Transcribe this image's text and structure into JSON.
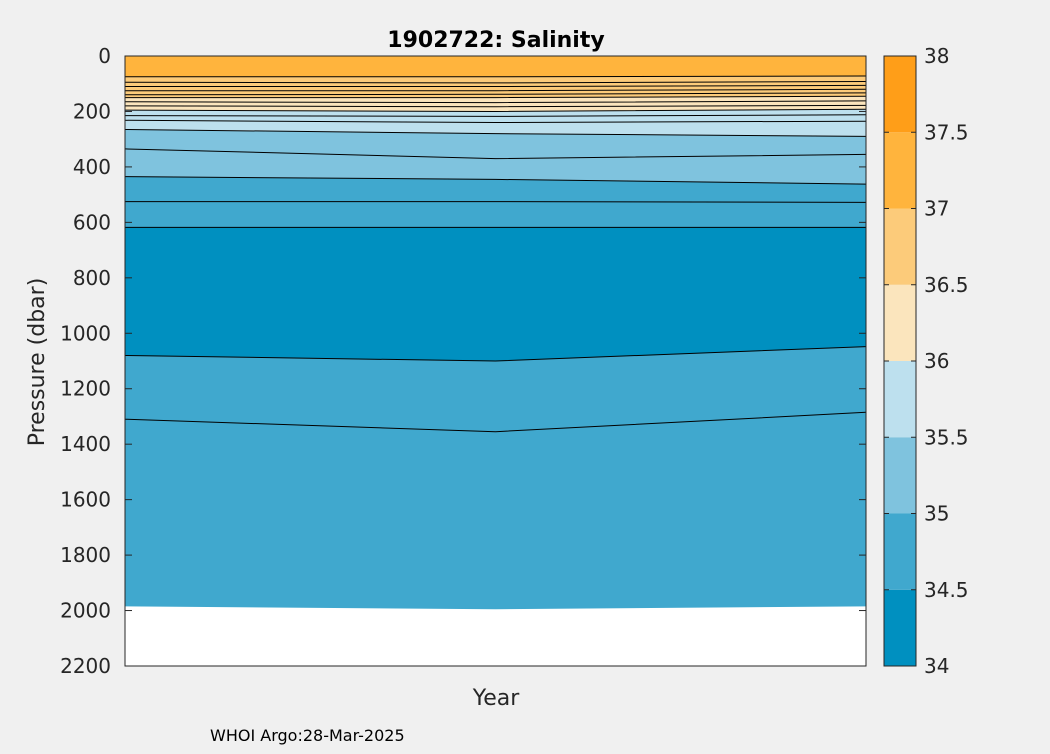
{
  "chart_data": {
    "type": "filled-contour",
    "title": "1902722:  Salinity",
    "xlabel": "Year",
    "ylabel": "Pressure (dbar)",
    "y_axis": {
      "range": [
        0,
        2200
      ],
      "reversed": true,
      "ticks": [
        0,
        200,
        400,
        600,
        800,
        1000,
        1200,
        1400,
        1600,
        1800,
        2000,
        2200
      ],
      "tick_labels": [
        "0",
        "200",
        "400",
        "600",
        "800",
        "1000",
        "1200",
        "1400",
        "1600",
        "1800",
        "2000",
        "2200"
      ]
    },
    "x_axis": {
      "range": [
        0,
        1
      ],
      "ticks": []
    },
    "colorbar": {
      "range": [
        34,
        38
      ],
      "ticks": [
        34,
        34.5,
        35,
        35.5,
        36,
        36.5,
        37,
        37.5,
        38
      ],
      "tick_labels": [
        "34",
        "34.5",
        "35",
        "35.5",
        "36",
        "36.5",
        "37",
        "37.5",
        "38"
      ],
      "bands": [
        {
          "from": 34.0,
          "to": 34.5,
          "color": "#0090c0"
        },
        {
          "from": 34.5,
          "to": 35.0,
          "color": "#40a8ce"
        },
        {
          "from": 35.0,
          "to": 35.5,
          "color": "#7fc3de"
        },
        {
          "from": 35.5,
          "to": 36.0,
          "color": "#bde0ee"
        },
        {
          "from": 36.0,
          "to": 36.5,
          "color": "#fbe5bd"
        },
        {
          "from": 36.5,
          "to": 37.0,
          "color": "#fccb7a"
        },
        {
          "from": 37.0,
          "to": 37.5,
          "color": "#ffb43d"
        },
        {
          "from": 37.5,
          "to": 38.0,
          "color": "#ff9e18"
        }
      ]
    },
    "colors": {
      "background": "#f0f0f0",
      "no_data": "#ffffff",
      "contour_line": "#000000"
    },
    "contour_levels": [
      {
        "level": 37.0,
        "x": [
          0,
          0.5,
          1
        ],
        "pressure": [
          75,
          75,
          72
        ]
      },
      {
        "level": 36.9,
        "x": [
          0,
          0.5,
          1
        ],
        "pressure": [
          95,
          97,
          92
        ]
      },
      {
        "level": 36.8,
        "x": [
          0,
          0.5,
          1
        ],
        "pressure": [
          110,
          110,
          106
        ]
      },
      {
        "level": 36.7,
        "x": [
          0,
          0.5,
          1
        ],
        "pressure": [
          125,
          125,
          120
        ]
      },
      {
        "level": 36.6,
        "x": [
          0,
          0.5,
          1
        ],
        "pressure": [
          140,
          138,
          133
        ]
      },
      {
        "level": 36.5,
        "x": [
          0,
          0.5,
          1
        ],
        "pressure": [
          150,
          150,
          145
        ]
      },
      {
        "level": 36.4,
        "x": [
          0,
          0.5,
          1
        ],
        "pressure": [
          165,
          168,
          162
        ]
      },
      {
        "level": 36.3,
        "x": [
          0,
          0.5,
          1
        ],
        "pressure": [
          180,
          183,
          178
        ]
      },
      {
        "level": 36.0,
        "x": [
          0,
          0.5,
          1
        ],
        "pressure": [
          195,
          200,
          192
        ]
      },
      {
        "level": 35.9,
        "x": [
          0,
          0.5,
          1
        ],
        "pressure": [
          215,
          218,
          212
        ]
      },
      {
        "level": 35.75,
        "x": [
          0,
          0.5,
          1
        ],
        "pressure": [
          232,
          240,
          235
        ]
      },
      {
        "level": 35.5,
        "x": [
          0,
          0.5,
          1
        ],
        "pressure": [
          265,
          280,
          290
        ]
      },
      {
        "level": 35.25,
        "x": [
          0,
          0.5,
          1
        ],
        "pressure": [
          335,
          370,
          355
        ]
      },
      {
        "level": 35.0,
        "x": [
          0,
          0.5,
          1
        ],
        "pressure": [
          435,
          445,
          462
        ]
      },
      {
        "level": 34.75,
        "x": [
          0,
          0.5,
          1
        ],
        "pressure": [
          525,
          525,
          528
        ]
      },
      {
        "level": 34.5,
        "x": [
          0,
          0.5,
          1
        ],
        "pressure": [
          618,
          618,
          618
        ]
      },
      {
        "level": 34.6,
        "x": [
          0,
          0.5,
          1
        ],
        "pressure": [
          1080,
          1100,
          1048
        ]
      },
      {
        "level": 34.65,
        "x": [
          0,
          0.5,
          1
        ],
        "pressure": [
          1310,
          1355,
          1285
        ]
      }
    ],
    "data_bottom": {
      "x": [
        0,
        0.5,
        1
      ],
      "pressure": [
        1985,
        1995,
        1985
      ]
    }
  },
  "footer": {
    "text": "WHOI Argo:28-Mar-2025"
  }
}
